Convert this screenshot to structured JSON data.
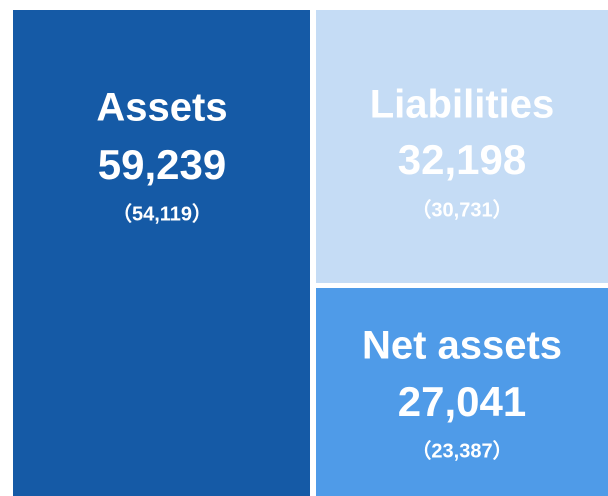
{
  "boxes": [
    {
      "label": "Assets",
      "value": "59,239",
      "previous": "（54,119）"
    },
    {
      "label": "Liabilities",
      "value": "32,198",
      "previous": "（30,731）"
    },
    {
      "label": "Net assets",
      "value": "27,041",
      "previous": "（23,387）"
    }
  ]
}
